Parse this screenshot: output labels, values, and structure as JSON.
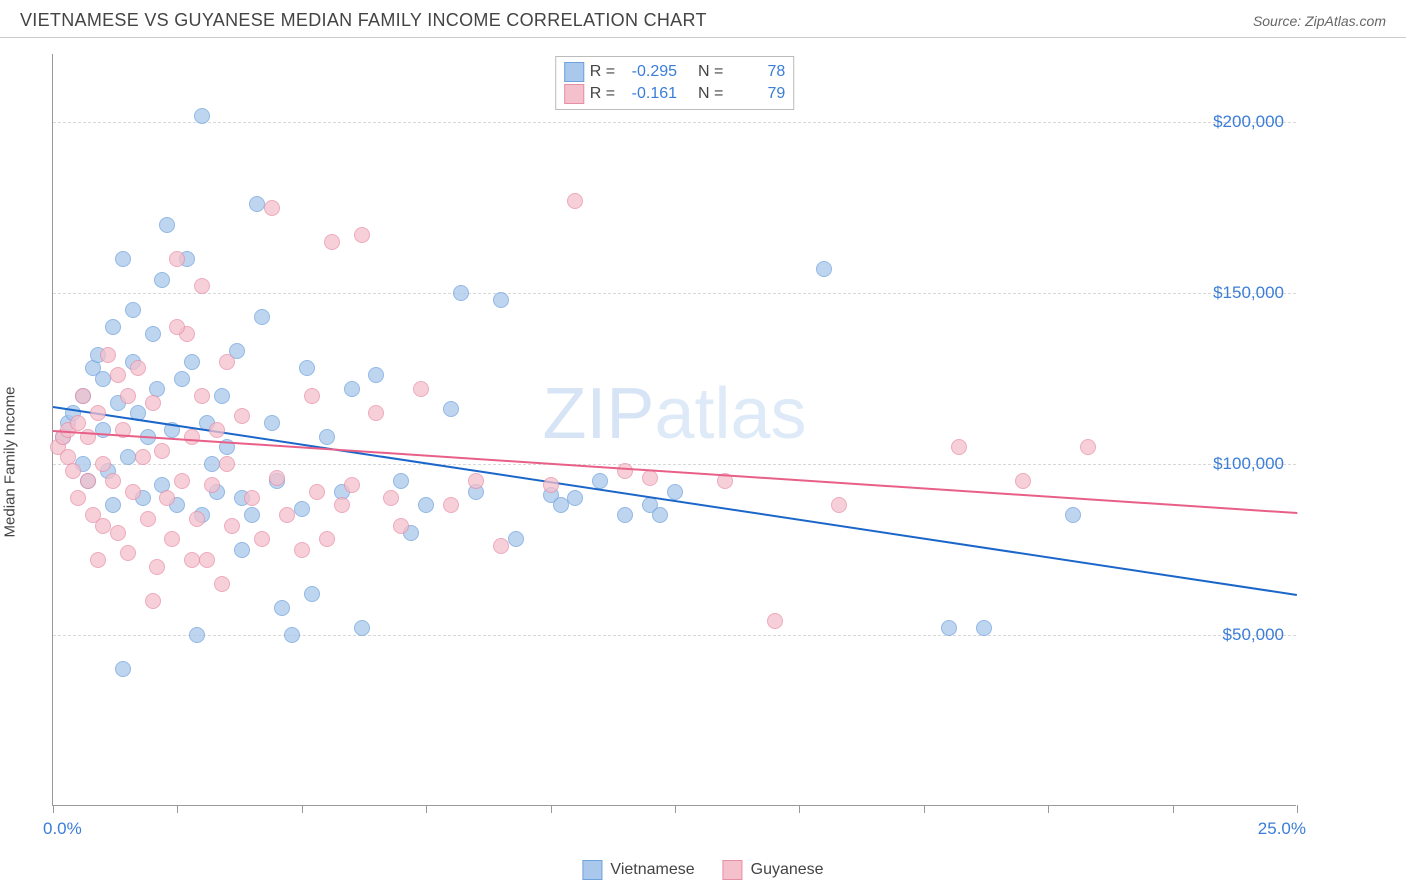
{
  "header": {
    "title": "VIETNAMESE VS GUYANESE MEDIAN FAMILY INCOME CORRELATION CHART",
    "source": "Source: ZipAtlas.com"
  },
  "watermark": {
    "bold": "ZIP",
    "light": "atlas"
  },
  "chart": {
    "type": "scatter",
    "ylabel": "Median Family Income",
    "x_start_label": "0.0%",
    "x_end_label": "25.0%",
    "xlim": [
      0,
      25
    ],
    "ylim": [
      0,
      220000
    ],
    "y_gridlines": [
      50000,
      100000,
      150000,
      200000
    ],
    "y_tick_labels": [
      "$50,000",
      "$100,000",
      "$150,000",
      "$200,000"
    ],
    "x_ticks": [
      0,
      2.5,
      5,
      7.5,
      10,
      12.5,
      15,
      17.5,
      20,
      22.5,
      25
    ],
    "grid_color": "#d8d8d8",
    "axis_color": "#999999",
    "point_radius": 8,
    "series": [
      {
        "name": "Vietnamese",
        "fill": "#a9c8ec",
        "stroke": "#6fa1dc",
        "trend_color": "#1b66c9",
        "R": "-0.295",
        "N": "78",
        "trend": {
          "x1": 0,
          "y1": 117000,
          "x2": 25,
          "y2": 62000
        },
        "points": [
          [
            0.2,
            108000
          ],
          [
            0.3,
            112000
          ],
          [
            0.4,
            115000
          ],
          [
            0.6,
            100000
          ],
          [
            0.6,
            120000
          ],
          [
            0.7,
            95000
          ],
          [
            0.8,
            128000
          ],
          [
            0.9,
            132000
          ],
          [
            1.0,
            110000
          ],
          [
            1.0,
            125000
          ],
          [
            1.1,
            98000
          ],
          [
            1.2,
            140000
          ],
          [
            1.3,
            118000
          ],
          [
            1.4,
            160000
          ],
          [
            1.5,
            102000
          ],
          [
            1.6,
            130000
          ],
          [
            1.7,
            115000
          ],
          [
            1.8,
            90000
          ],
          [
            1.9,
            108000
          ],
          [
            2.0,
            138000
          ],
          [
            2.1,
            122000
          ],
          [
            2.2,
            94000
          ],
          [
            2.3,
            170000
          ],
          [
            2.4,
            110000
          ],
          [
            2.5,
            88000
          ],
          [
            2.6,
            125000
          ],
          [
            2.7,
            160000
          ],
          [
            2.8,
            130000
          ],
          [
            2.9,
            50000
          ],
          [
            3.0,
            202000
          ],
          [
            3.1,
            112000
          ],
          [
            3.2,
            100000
          ],
          [
            3.3,
            92000
          ],
          [
            3.4,
            120000
          ],
          [
            3.5,
            105000
          ],
          [
            3.7,
            133000
          ],
          [
            3.8,
            90000
          ],
          [
            4.0,
            85000
          ],
          [
            4.1,
            176000
          ],
          [
            4.2,
            143000
          ],
          [
            4.4,
            112000
          ],
          [
            4.5,
            95000
          ],
          [
            4.6,
            58000
          ],
          [
            4.8,
            50000
          ],
          [
            5.0,
            87000
          ],
          [
            5.1,
            128000
          ],
          [
            5.2,
            62000
          ],
          [
            5.5,
            108000
          ],
          [
            5.8,
            92000
          ],
          [
            6.0,
            122000
          ],
          [
            6.2,
            52000
          ],
          [
            6.5,
            126000
          ],
          [
            7.0,
            95000
          ],
          [
            7.2,
            80000
          ],
          [
            7.5,
            88000
          ],
          [
            8.0,
            116000
          ],
          [
            8.2,
            150000
          ],
          [
            8.5,
            92000
          ],
          [
            9.0,
            148000
          ],
          [
            9.3,
            78000
          ],
          [
            10.0,
            91000
          ],
          [
            10.2,
            88000
          ],
          [
            10.5,
            90000
          ],
          [
            11.0,
            95000
          ],
          [
            11.5,
            85000
          ],
          [
            12.0,
            88000
          ],
          [
            12.2,
            85000
          ],
          [
            12.5,
            92000
          ],
          [
            15.5,
            157000
          ],
          [
            18.0,
            52000
          ],
          [
            18.7,
            52000
          ],
          [
            20.5,
            85000
          ],
          [
            1.2,
            88000
          ],
          [
            1.6,
            145000
          ],
          [
            2.2,
            154000
          ],
          [
            1.4,
            40000
          ],
          [
            3.0,
            85000
          ],
          [
            3.8,
            75000
          ]
        ]
      },
      {
        "name": "Guyanese",
        "fill": "#f4c0cc",
        "stroke": "#e88fa8",
        "trend_color": "#e85f88",
        "R": "-0.161",
        "N": "79",
        "trend": {
          "x1": 0,
          "y1": 110000,
          "x2": 25,
          "y2": 86000
        },
        "points": [
          [
            0.1,
            105000
          ],
          [
            0.2,
            108000
          ],
          [
            0.3,
            110000
          ],
          [
            0.3,
            102000
          ],
          [
            0.4,
            98000
          ],
          [
            0.5,
            112000
          ],
          [
            0.5,
            90000
          ],
          [
            0.6,
            120000
          ],
          [
            0.7,
            108000
          ],
          [
            0.8,
            85000
          ],
          [
            0.9,
            72000
          ],
          [
            1.0,
            100000
          ],
          [
            1.1,
            132000
          ],
          [
            1.2,
            95000
          ],
          [
            1.3,
            80000
          ],
          [
            1.4,
            110000
          ],
          [
            1.5,
            74000
          ],
          [
            1.6,
            92000
          ],
          [
            1.7,
            128000
          ],
          [
            1.8,
            102000
          ],
          [
            1.9,
            84000
          ],
          [
            2.0,
            118000
          ],
          [
            2.1,
            70000
          ],
          [
            2.2,
            104000
          ],
          [
            2.3,
            90000
          ],
          [
            2.4,
            78000
          ],
          [
            2.5,
            160000
          ],
          [
            2.6,
            95000
          ],
          [
            2.7,
            138000
          ],
          [
            2.8,
            108000
          ],
          [
            2.9,
            84000
          ],
          [
            3.0,
            120000
          ],
          [
            3.1,
            72000
          ],
          [
            3.2,
            94000
          ],
          [
            3.3,
            110000
          ],
          [
            3.4,
            65000
          ],
          [
            3.5,
            100000
          ],
          [
            3.6,
            82000
          ],
          [
            3.8,
            114000
          ],
          [
            4.0,
            90000
          ],
          [
            4.2,
            78000
          ],
          [
            4.4,
            175000
          ],
          [
            4.5,
            96000
          ],
          [
            4.7,
            85000
          ],
          [
            5.0,
            75000
          ],
          [
            5.2,
            120000
          ],
          [
            5.3,
            92000
          ],
          [
            5.5,
            78000
          ],
          [
            5.6,
            165000
          ],
          [
            5.8,
            88000
          ],
          [
            6.0,
            94000
          ],
          [
            6.2,
            167000
          ],
          [
            6.5,
            115000
          ],
          [
            6.8,
            90000
          ],
          [
            7.0,
            82000
          ],
          [
            7.4,
            122000
          ],
          [
            8.0,
            88000
          ],
          [
            8.5,
            95000
          ],
          [
            9.0,
            76000
          ],
          [
            10.0,
            94000
          ],
          [
            10.5,
            177000
          ],
          [
            11.5,
            98000
          ],
          [
            12.0,
            96000
          ],
          [
            13.5,
            95000
          ],
          [
            14.5,
            54000
          ],
          [
            15.8,
            88000
          ],
          [
            18.2,
            105000
          ],
          [
            19.5,
            95000
          ],
          [
            20.8,
            105000
          ],
          [
            1.0,
            82000
          ],
          [
            1.3,
            126000
          ],
          [
            2.0,
            60000
          ],
          [
            2.5,
            140000
          ],
          [
            3.0,
            152000
          ],
          [
            3.5,
            130000
          ],
          [
            0.7,
            95000
          ],
          [
            0.9,
            115000
          ],
          [
            1.5,
            120000
          ],
          [
            2.8,
            72000
          ]
        ]
      }
    ],
    "legend": [
      {
        "label": "Vietnamese",
        "fill": "#a9c8ec",
        "stroke": "#6fa1dc"
      },
      {
        "label": "Guyanese",
        "fill": "#f4c0cc",
        "stroke": "#e88fa8"
      }
    ],
    "stat_box": {
      "R_label": "R =",
      "N_label": "N ="
    }
  }
}
